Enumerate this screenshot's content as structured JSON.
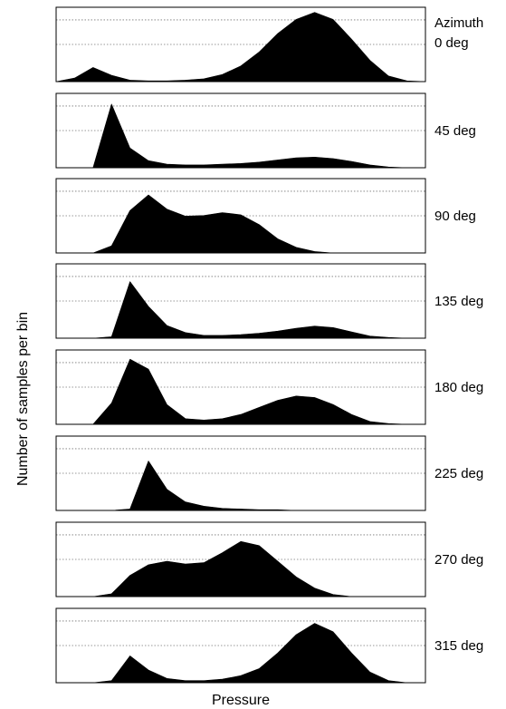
{
  "chart_data": {
    "type": "area",
    "ylabel": "Number of samples per bin",
    "xlabel": "Pressure",
    "legend_title": "Azimuth",
    "x": [
      0,
      0.05,
      0.1,
      0.15,
      0.2,
      0.25,
      0.3,
      0.35,
      0.4,
      0.45,
      0.5,
      0.55,
      0.6,
      0.65,
      0.7,
      0.75,
      0.8,
      0.85,
      0.9,
      0.95,
      1
    ],
    "ylim": [
      0,
      1
    ],
    "grid": "horizontal dotted lines",
    "panels": [
      {
        "label": "0 deg",
        "values": [
          0,
          0.05,
          0.2,
          0.09,
          0.02,
          0.01,
          0.01,
          0.02,
          0.04,
          0.1,
          0.22,
          0.42,
          0.68,
          0.88,
          0.98,
          0.88,
          0.6,
          0.3,
          0.08,
          0.01,
          0
        ]
      },
      {
        "label": "45 deg",
        "values": [
          0,
          0,
          0,
          0.9,
          0.28,
          0.1,
          0.05,
          0.04,
          0.04,
          0.05,
          0.06,
          0.08,
          0.11,
          0.14,
          0.15,
          0.13,
          0.09,
          0.04,
          0.01,
          0,
          0
        ]
      },
      {
        "label": "90 deg",
        "values": [
          0,
          0,
          0,
          0.1,
          0.6,
          0.82,
          0.62,
          0.52,
          0.53,
          0.57,
          0.54,
          0.4,
          0.2,
          0.08,
          0.02,
          0,
          0,
          0,
          0,
          0,
          0
        ]
      },
      {
        "label": "135 deg",
        "values": [
          0,
          0,
          0,
          0.02,
          0.8,
          0.45,
          0.18,
          0.08,
          0.04,
          0.04,
          0.05,
          0.07,
          0.1,
          0.14,
          0.17,
          0.15,
          0.09,
          0.03,
          0.01,
          0,
          0
        ]
      },
      {
        "label": "180 deg",
        "values": [
          0,
          0,
          0,
          0.3,
          0.92,
          0.78,
          0.28,
          0.08,
          0.06,
          0.08,
          0.14,
          0.24,
          0.34,
          0.4,
          0.38,
          0.28,
          0.14,
          0.04,
          0.01,
          0,
          0
        ]
      },
      {
        "label": "225 deg",
        "values": [
          0,
          0,
          0,
          0,
          0.02,
          0.7,
          0.3,
          0.12,
          0.06,
          0.03,
          0.02,
          0.01,
          0.01,
          0,
          0,
          0,
          0,
          0,
          0,
          0,
          0
        ]
      },
      {
        "label": "270 deg",
        "values": [
          0,
          0,
          0,
          0.04,
          0.3,
          0.45,
          0.5,
          0.46,
          0.48,
          0.62,
          0.78,
          0.72,
          0.5,
          0.28,
          0.12,
          0.03,
          0,
          0,
          0,
          0,
          0
        ]
      },
      {
        "label": "315 deg",
        "values": [
          0,
          0,
          0,
          0.03,
          0.38,
          0.18,
          0.06,
          0.03,
          0.03,
          0.05,
          0.1,
          0.2,
          0.42,
          0.68,
          0.84,
          0.72,
          0.42,
          0.15,
          0.03,
          0,
          0
        ]
      }
    ]
  }
}
